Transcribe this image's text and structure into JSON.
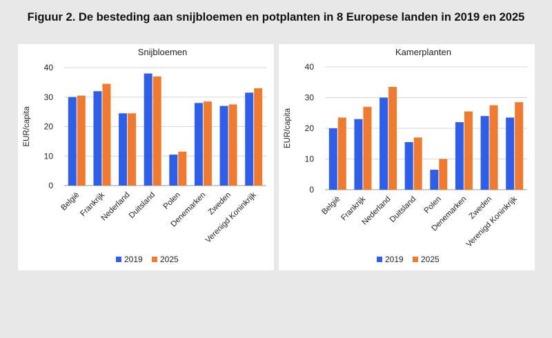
{
  "title": "Figuur 2. De besteding aan snijbloemen en potplanten in 8 Europese landen in 2019 en 2025",
  "colors": {
    "2019": "#2f5fe8",
    "2025": "#f07a30"
  },
  "chart_data": [
    {
      "type": "bar",
      "title": "Snijbloemen",
      "ylabel": "EUR/capita",
      "xlabel": "",
      "ylim": [
        0,
        40
      ],
      "yticks": [
        "0",
        "10",
        "20",
        "30",
        "40"
      ],
      "grid": true,
      "legend": "bottom",
      "categories": [
        "België",
        "Frankrijk",
        "Nederland",
        "Duitsland",
        "Polen",
        "Denemarken",
        "Zweden",
        "Verenigd Koninkrijk"
      ],
      "series": [
        {
          "name": "2019",
          "values": [
            30,
            32,
            24.5,
            38,
            10.5,
            28,
            27,
            31.5
          ]
        },
        {
          "name": "2025",
          "values": [
            30.5,
            34.5,
            24.5,
            37,
            11.5,
            28.5,
            27.5,
            33
          ]
        }
      ]
    },
    {
      "type": "bar",
      "title": "Kamerplanten",
      "ylabel": "EUR/capita",
      "xlabel": "",
      "ylim": [
        0,
        40
      ],
      "yticks": [
        "0",
        "10",
        "20",
        "30",
        "40"
      ],
      "grid": true,
      "legend": "bottom",
      "categories": [
        "België",
        "Frankrijk",
        "Nederland",
        "Duitsland",
        "Polen",
        "Denemarken",
        "Zweden",
        "Verenigd Koninkrijk"
      ],
      "series": [
        {
          "name": "2019",
          "values": [
            20,
            23,
            30,
            15.5,
            6.5,
            22,
            24,
            23.5
          ]
        },
        {
          "name": "2025",
          "values": [
            23.5,
            27,
            33.5,
            17,
            10,
            25.5,
            27.5,
            28.5
          ]
        }
      ]
    }
  ]
}
